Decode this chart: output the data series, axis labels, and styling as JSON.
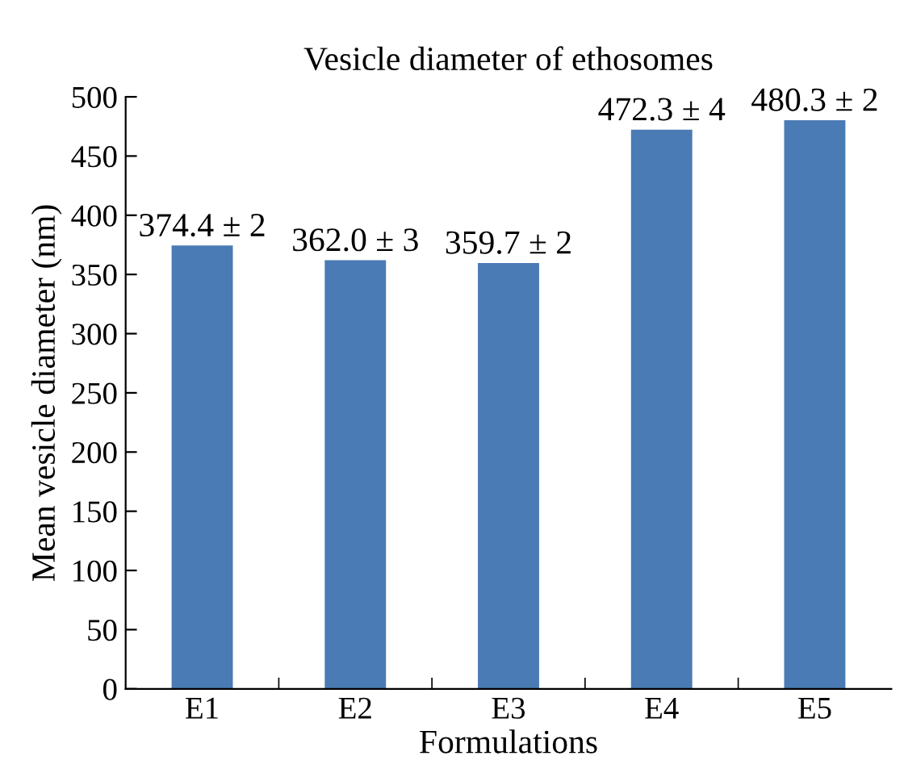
{
  "chart_data": {
    "type": "bar",
    "title": "Vesicle diameter of ethosomes",
    "xlabel": "Formulations",
    "ylabel": "Mean vesicle diameter (nm)",
    "categories": [
      "E1",
      "E2",
      "E3",
      "E4",
      "E5"
    ],
    "values": [
      374.4,
      362.0,
      359.7,
      472.3,
      480.3
    ],
    "value_labels": [
      "374.4 ± 2",
      "362.0 ± 3",
      "359.7 ± 2",
      "472.3 ± 4",
      "480.3 ± 2"
    ],
    "color": "#4a7bb4",
    "ylim": [
      0,
      500
    ],
    "yticks": [
      0,
      50,
      100,
      150,
      200,
      250,
      300,
      350,
      400,
      450,
      500
    ],
    "grid": false,
    "legend": false
  }
}
